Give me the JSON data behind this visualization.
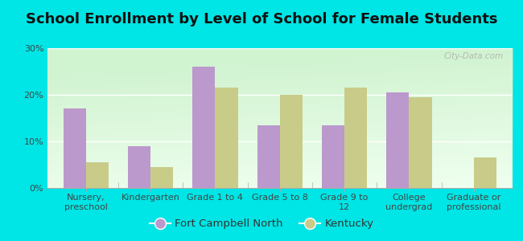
{
  "title": "School Enrollment by Level of School for Female Students",
  "categories": [
    "Nursery,\npreschool",
    "Kindergarten",
    "Grade 1 to 4",
    "Grade 5 to 8",
    "Grade 9 to\n12",
    "College\nundergrad",
    "Graduate or\nprofessional"
  ],
  "fort_campbell_values": [
    17,
    9,
    26,
    13.5,
    13.5,
    20.5,
    0
  ],
  "kentucky_values": [
    5.5,
    4.5,
    21.5,
    20,
    21.5,
    19.5,
    6.5
  ],
  "fort_campbell_color": "#bb99cc",
  "kentucky_color": "#c8cc88",
  "background_outer": "#00e5e5",
  "background_inner_tl": "#d8eedd",
  "background_inner_br": "#f5fff5",
  "ylim": [
    0,
    30
  ],
  "yticks": [
    0,
    10,
    20,
    30
  ],
  "ytick_labels": [
    "0%",
    "10%",
    "20%",
    "30%"
  ],
  "legend_label_fc": "Fort Campbell North",
  "legend_label_ky": "Kentucky",
  "title_fontsize": 13,
  "tick_fontsize": 8,
  "legend_fontsize": 9.5
}
